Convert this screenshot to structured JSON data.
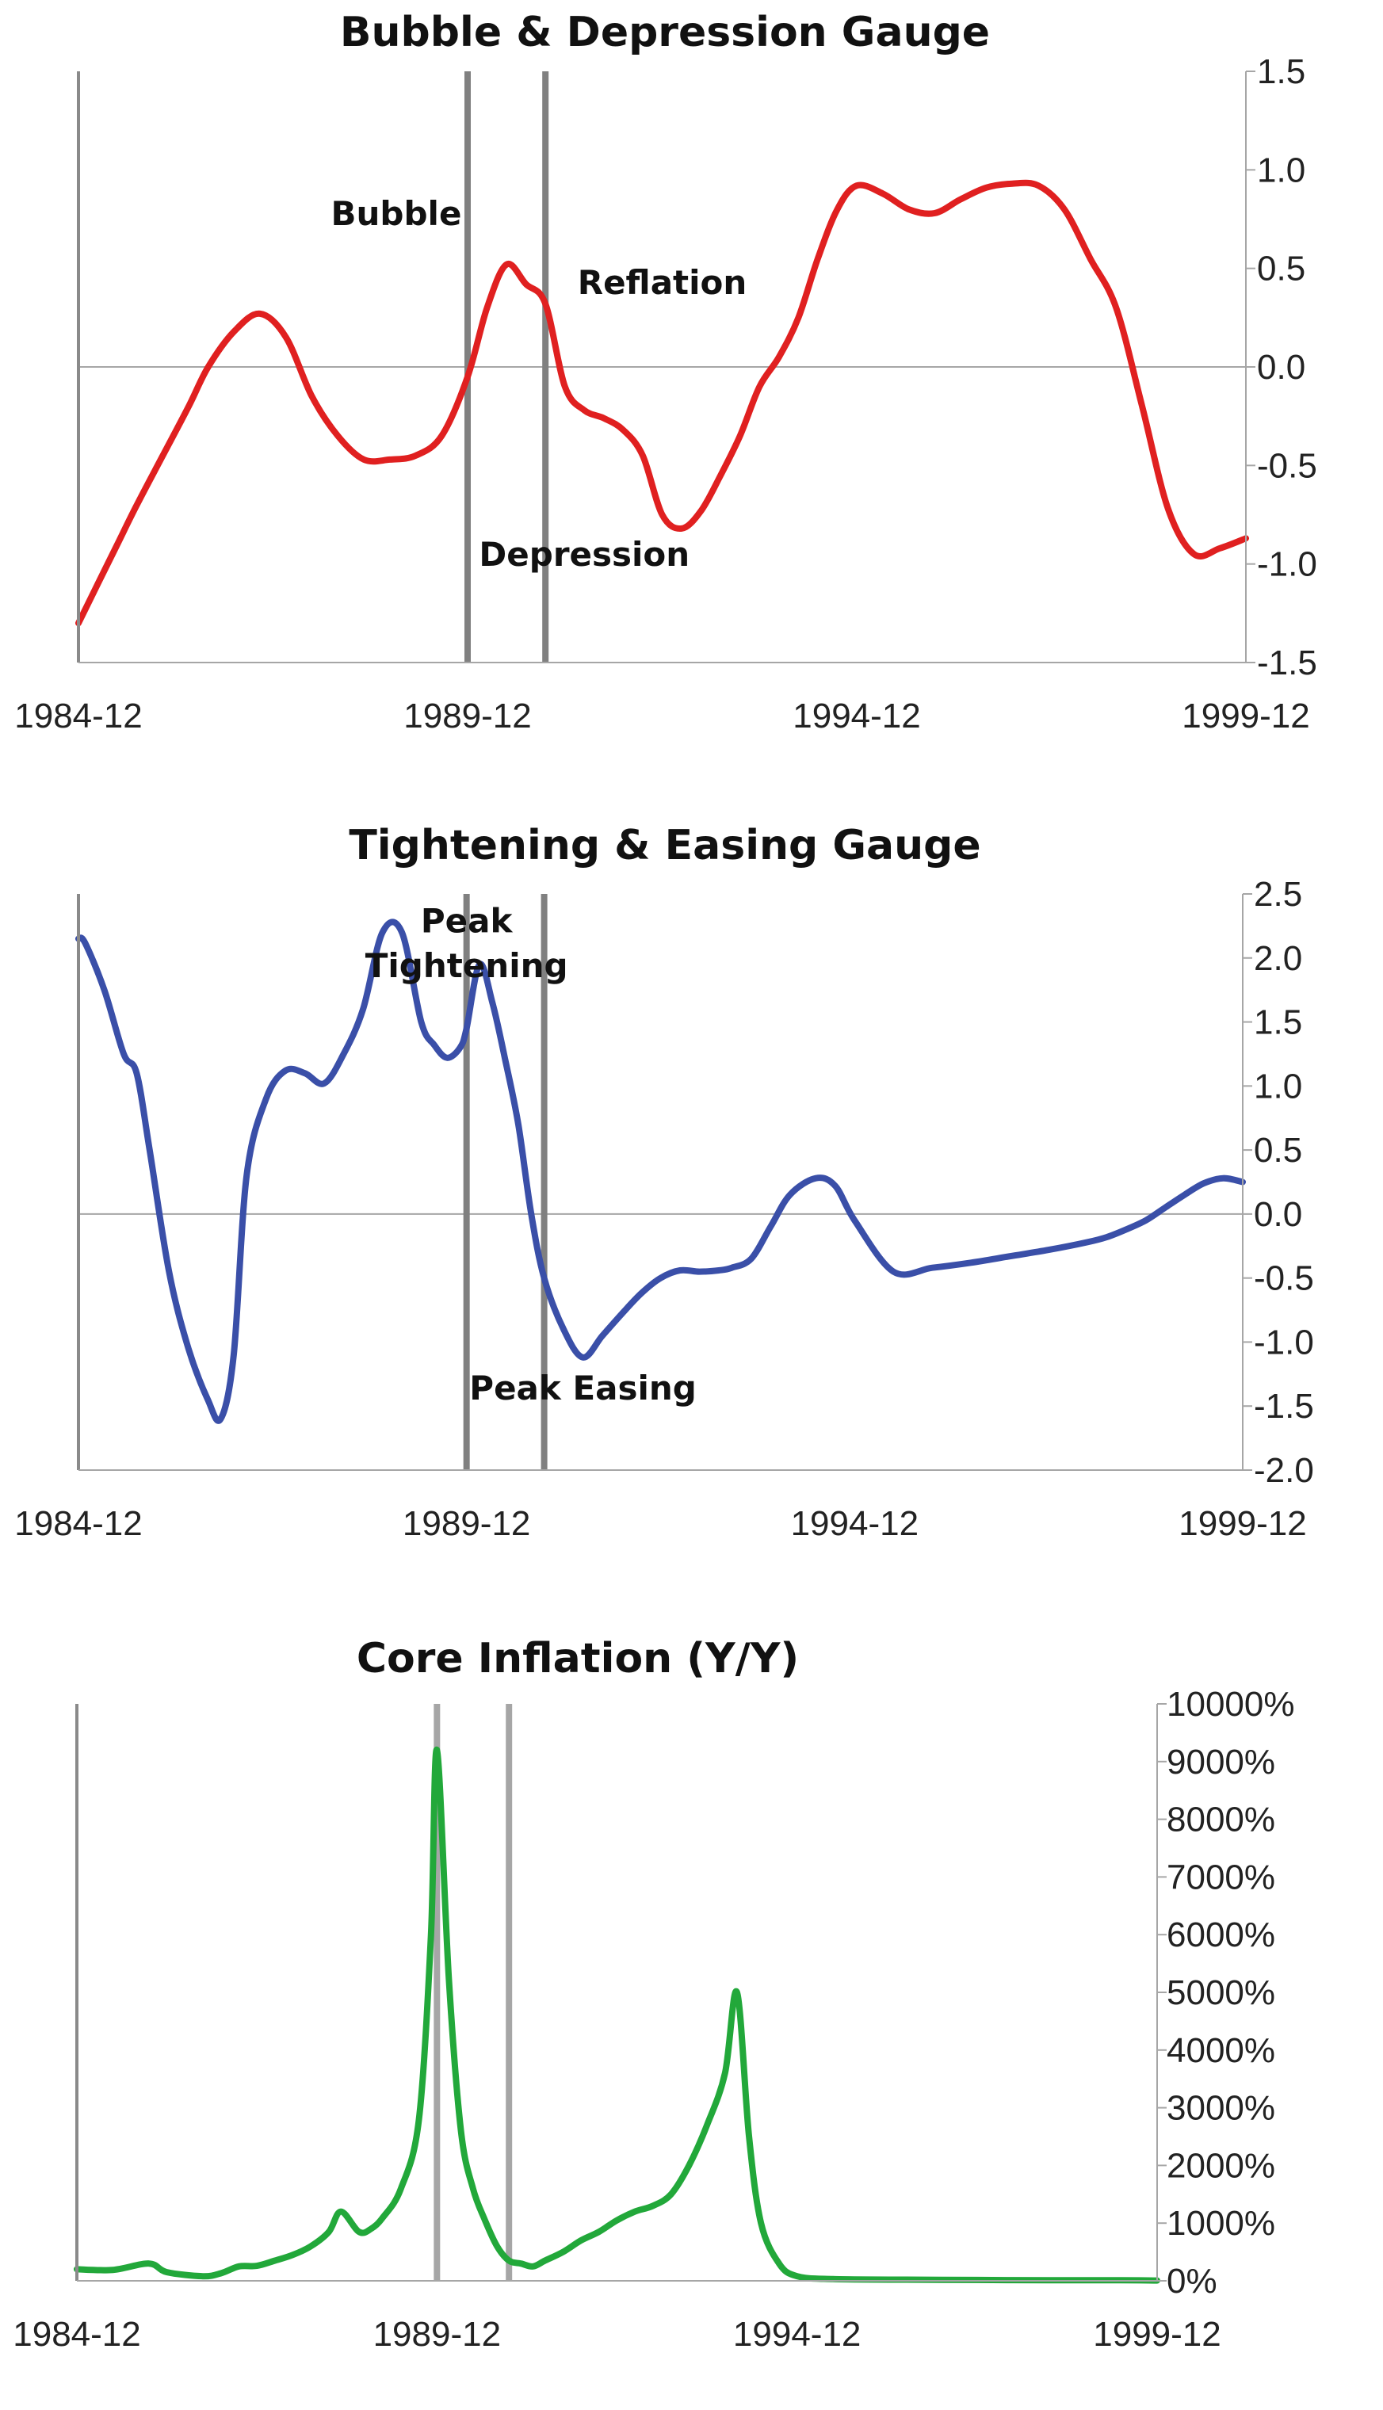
{
  "chart_data": [
    {
      "type": "line",
      "title": "Bubble & Depression Gauge",
      "x_tick_labels": [
        "1984-12",
        "1989-12",
        "1994-12",
        "1999-12"
      ],
      "xlim": [
        "1984-12",
        "1999-12"
      ],
      "ylim": [
        -1.5,
        1.5
      ],
      "y_tick_labels": [
        "1.5",
        "1.0",
        "0.5",
        "0.0",
        "-0.5",
        "-1.0",
        "-1.5"
      ],
      "y_tick_values": [
        1.5,
        1.0,
        0.5,
        0.0,
        -0.5,
        -1.0,
        -1.5
      ],
      "y_axis_side": "right",
      "zero_line": true,
      "vertical_markers": [
        "1989-12",
        "1990-12"
      ],
      "colors": {
        "line": "#e02020",
        "markers": "#808080",
        "axis": "#a6a6a6"
      },
      "annotations": [
        {
          "text": "Bubble",
          "x": "1989-01",
          "y": 0.72
        },
        {
          "text": "Reflation",
          "x": "1992-06",
          "y": 0.37
        },
        {
          "text": "Depression",
          "x": "1991-06",
          "y": -1.01
        }
      ],
      "series": [
        {
          "x": [
            "1984-12",
            "1985-03",
            "1985-06",
            "1985-09",
            "1986-01",
            "1986-05",
            "1986-08",
            "1986-12",
            "1987-04",
            "1987-08",
            "1987-12",
            "1988-04",
            "1988-08",
            "1988-12",
            "1989-04",
            "1989-08",
            "1989-12",
            "1990-03",
            "1990-06",
            "1990-09",
            "1990-12",
            "1991-03",
            "1991-06",
            "1991-09",
            "1991-12",
            "1992-03",
            "1992-06",
            "1992-09",
            "1992-12",
            "1993-03",
            "1993-06",
            "1993-09",
            "1993-12",
            "1994-03",
            "1994-06",
            "1994-09",
            "1994-12",
            "1995-04",
            "1995-08",
            "1995-12",
            "1996-04",
            "1996-08",
            "1996-12",
            "1997-04",
            "1997-08",
            "1997-12",
            "1998-04",
            "1998-08",
            "1998-12",
            "1999-04",
            "1999-08",
            "1999-12"
          ],
          "values": [
            -1.3,
            -1.1,
            -0.9,
            -0.7,
            -0.45,
            -0.2,
            0.0,
            0.18,
            0.27,
            0.15,
            -0.15,
            -0.35,
            -0.47,
            -0.47,
            -0.45,
            -0.35,
            -0.05,
            0.3,
            0.52,
            0.42,
            0.32,
            -0.1,
            -0.22,
            -0.26,
            -0.32,
            -0.45,
            -0.75,
            -0.82,
            -0.73,
            -0.55,
            -0.35,
            -0.1,
            0.05,
            0.25,
            0.55,
            0.8,
            0.92,
            0.88,
            0.8,
            0.78,
            0.85,
            0.91,
            0.93,
            0.92,
            0.8,
            0.55,
            0.3,
            -0.2,
            -0.72,
            -0.95,
            -0.92,
            -0.87
          ]
        }
      ]
    },
    {
      "type": "line",
      "title": "Tightening & Easing Gauge",
      "x_tick_labels": [
        "1984-12",
        "1989-12",
        "1994-12",
        "1999-12"
      ],
      "xlim": [
        "1984-12",
        "1999-12"
      ],
      "ylim": [
        -2.0,
        2.5
      ],
      "y_tick_labels": [
        "2.5",
        "2.0",
        "1.5",
        "1.0",
        "0.5",
        "0.0",
        "-0.5",
        "-1.0",
        "-1.5",
        "-2.0"
      ],
      "y_tick_values": [
        2.5,
        2.0,
        1.5,
        1.0,
        0.5,
        0.0,
        -0.5,
        -1.0,
        -1.5,
        -2.0
      ],
      "y_axis_side": "right",
      "zero_line": true,
      "vertical_markers": [
        "1989-12",
        "1990-12"
      ],
      "colors": {
        "line": "#3a4fa8",
        "markers": "#808080",
        "axis": "#a6a6a6"
      },
      "annotations": [
        {
          "text": "Peak",
          "x": "1989-12",
          "y": 2.2
        },
        {
          "text": "Tightening",
          "x": "1989-12",
          "y": 1.85
        },
        {
          "text": "Peak Easing",
          "x": "1991-06",
          "y": -1.45
        }
      ],
      "series": [
        {
          "x": [
            "1984-12",
            "1985-01",
            "1985-04",
            "1985-07",
            "1985-09",
            "1985-11",
            "1986-02",
            "1986-05",
            "1986-08",
            "1986-10",
            "1986-12",
            "1987-02",
            "1987-05",
            "1987-08",
            "1987-11",
            "1988-02",
            "1988-05",
            "1988-08",
            "1988-11",
            "1989-02",
            "1989-05",
            "1989-07",
            "1989-09",
            "1989-11",
            "1989-12",
            "1990-02",
            "1990-04",
            "1990-06",
            "1990-08",
            "1990-10",
            "1990-12",
            "1991-03",
            "1991-06",
            "1991-09",
            "1991-12",
            "1992-03",
            "1992-06",
            "1992-09",
            "1992-12",
            "1993-03",
            "1993-05",
            "1993-08",
            "1993-11",
            "1994-02",
            "1994-06",
            "1994-09",
            "1994-12",
            "1995-06",
            "1995-12",
            "1996-06",
            "1996-12",
            "1997-06",
            "1997-12",
            "1998-03",
            "1998-06",
            "1998-09",
            "1998-12",
            "1999-03",
            "1999-06",
            "1999-09",
            "1999-12"
          ],
          "values": [
            2.15,
            2.12,
            1.75,
            1.25,
            1.1,
            0.5,
            -0.45,
            -1.05,
            -1.45,
            -1.6,
            -1.1,
            0.3,
            0.9,
            1.12,
            1.1,
            1.02,
            1.25,
            1.6,
            2.2,
            2.2,
            1.5,
            1.32,
            1.22,
            1.3,
            1.45,
            1.95,
            1.65,
            1.2,
            0.7,
            0.0,
            -0.5,
            -0.9,
            -1.12,
            -0.95,
            -0.78,
            -0.62,
            -0.5,
            -0.44,
            -0.45,
            -0.44,
            -0.42,
            -0.35,
            -0.1,
            0.15,
            0.28,
            0.22,
            -0.05,
            -0.45,
            -0.42,
            -0.38,
            -0.33,
            -0.28,
            -0.22,
            -0.18,
            -0.12,
            -0.05,
            0.05,
            0.15,
            0.24,
            0.28,
            0.25
          ]
        }
      ]
    },
    {
      "type": "line",
      "title": "Core Inflation (Y/Y)",
      "x_tick_labels": [
        "1984-12",
        "1989-12",
        "1994-12",
        "1999-12"
      ],
      "xlim": [
        "1984-12",
        "1999-12"
      ],
      "ylim": [
        0,
        10000
      ],
      "y_unit": "%",
      "y_tick_labels": [
        "10000%",
        "9000%",
        "8000%",
        "7000%",
        "6000%",
        "5000%",
        "4000%",
        "3000%",
        "2000%",
        "1000%",
        "0%"
      ],
      "y_tick_values": [
        10000,
        9000,
        8000,
        7000,
        6000,
        5000,
        4000,
        3000,
        2000,
        1000,
        0
      ],
      "y_axis_side": "right",
      "zero_line": false,
      "vertical_markers": [
        "1989-12",
        "1990-12"
      ],
      "colors": {
        "line": "#22a83a",
        "markers": "#a6a6a6",
        "axis": "#a6a6a6"
      },
      "annotations": [],
      "series": [
        {
          "x": [
            "1984-12",
            "1985-06",
            "1985-12",
            "1986-03",
            "1986-09",
            "1986-12",
            "1987-03",
            "1987-06",
            "1987-09",
            "1987-12",
            "1988-03",
            "1988-06",
            "1988-08",
            "1988-11",
            "1989-01",
            "1989-03",
            "1989-06",
            "1989-09",
            "1989-11",
            "1989-12",
            "1990-02",
            "1990-04",
            "1990-06",
            "1990-08",
            "1990-10",
            "1990-12",
            "1991-02",
            "1991-04",
            "1991-06",
            "1991-09",
            "1991-12",
            "1992-03",
            "1992-06",
            "1992-09",
            "1992-12",
            "1993-03",
            "1993-06",
            "1993-09",
            "1993-12",
            "1994-02",
            "1994-04",
            "1994-06",
            "1994-09",
            "1994-12",
            "1995-06",
            "1996-06",
            "1997-06",
            "1998-06",
            "1999-06",
            "1999-12"
          ],
          "values": [
            200,
            190,
            300,
            150,
            80,
            130,
            250,
            260,
            350,
            450,
            600,
            850,
            1200,
            850,
            900,
            1100,
            1600,
            2800,
            6000,
            9200,
            5200,
            2600,
            1600,
            1050,
            600,
            350,
            300,
            250,
            350,
            500,
            700,
            850,
            1050,
            1200,
            1300,
            1500,
            2000,
            2700,
            3600,
            5000,
            2500,
            1000,
            300,
            80,
            30,
            20,
            15,
            10,
            10,
            5
          ]
        }
      ]
    }
  ]
}
